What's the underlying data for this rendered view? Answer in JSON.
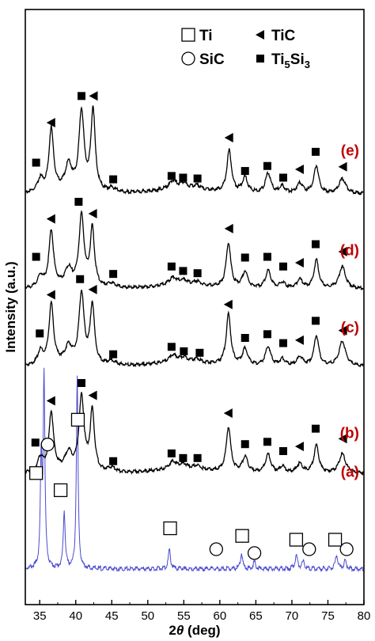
{
  "chart_data": {
    "type": "line",
    "title": "",
    "xlabel_main": "2",
    "xlabel_theta": "θ",
    "xlabel_unit": " (deg)",
    "ylabel": "Intensity (a.u.)",
    "xlim": [
      33,
      80
    ],
    "xticks": [
      35,
      40,
      45,
      50,
      55,
      60,
      65,
      70,
      75,
      80
    ],
    "grid": false,
    "legend_placement": "top-right",
    "legend": [
      {
        "name": "Ti",
        "marker": "square-open"
      },
      {
        "name": "TiC",
        "marker": "triangle-left"
      },
      {
        "name": "SiC",
        "marker": "circle-open"
      },
      {
        "name": "Ti",
        "sub1": "5",
        "mid": "Si",
        "sub2": "3",
        "marker": "square-filled"
      }
    ],
    "colors": {
      "label": "#c00000",
      "curve": "#000000",
      "curve_a": "#4a4ad0"
    },
    "series": [
      {
        "name": "(a)",
        "baseline": 0.06,
        "scale": 0.32,
        "peaks": [
          [
            35.2,
            0.55,
            0.14
          ],
          [
            35.6,
            1.0,
            0.14
          ],
          [
            38.4,
            0.3,
            0.16
          ],
          [
            40.2,
            1.0,
            0.14
          ],
          [
            53.0,
            0.1,
            0.18
          ],
          [
            63.0,
            0.08,
            0.18
          ],
          [
            64.8,
            0.04,
            0.18
          ],
          [
            70.6,
            0.07,
            0.2
          ],
          [
            71.6,
            0.04,
            0.2
          ],
          [
            76.2,
            0.07,
            0.2
          ],
          [
            77.4,
            0.04,
            0.2
          ]
        ],
        "markers": [
          {
            "x": 34.5,
            "h": 0.47,
            "m": "square-open"
          },
          {
            "x": 36.1,
            "h": 0.62,
            "m": "circle-open"
          },
          {
            "x": 37.9,
            "h": 0.38,
            "m": "square-open"
          },
          {
            "x": 40.3,
            "h": 0.75,
            "m": "square-open"
          },
          {
            "x": 53.1,
            "h": 0.18,
            "m": "square-open"
          },
          {
            "x": 59.5,
            "h": 0.07,
            "m": "circle-open"
          },
          {
            "x": 63.1,
            "h": 0.14,
            "m": "square-open"
          },
          {
            "x": 64.8,
            "h": 0.05,
            "m": "circle-open"
          },
          {
            "x": 70.6,
            "h": 0.12,
            "m": "square-open"
          },
          {
            "x": 72.4,
            "h": 0.07,
            "m": "circle-open"
          },
          {
            "x": 76.0,
            "h": 0.12,
            "m": "square-open"
          },
          {
            "x": 77.6,
            "h": 0.07,
            "m": "circle-open"
          }
        ]
      },
      {
        "name": "(b)",
        "baseline": 0.22,
        "scale": 0.13,
        "peaks": [
          [
            35.1,
            0.18,
            0.45
          ],
          [
            36.6,
            0.75,
            0.38
          ],
          [
            39.0,
            0.22,
            0.55
          ],
          [
            40.8,
            0.95,
            0.42
          ],
          [
            42.3,
            0.78,
            0.36
          ],
          [
            45.0,
            0.06,
            0.7
          ],
          [
            53.5,
            0.1,
            0.7
          ],
          [
            55.0,
            0.06,
            0.6
          ],
          [
            56.8,
            0.05,
            0.6
          ],
          [
            61.2,
            0.58,
            0.38
          ],
          [
            63.5,
            0.2,
            0.45
          ],
          [
            66.7,
            0.24,
            0.45
          ],
          [
            68.7,
            0.08,
            0.45
          ],
          [
            71.1,
            0.12,
            0.5
          ],
          [
            73.4,
            0.36,
            0.4
          ],
          [
            77.0,
            0.25,
            0.55
          ]
        ],
        "markers": [
          {
            "x": 34.4,
            "h": 0.32,
            "m": "square-filled"
          },
          {
            "x": 36.6,
            "h": 0.86,
            "m": "triangle-left"
          },
          {
            "x": 40.8,
            "h": 1.09,
            "m": "square-filled"
          },
          {
            "x": 42.4,
            "h": 0.93,
            "m": "triangle-left"
          },
          {
            "x": 45.2,
            "h": 0.08,
            "m": "square-filled"
          },
          {
            "x": 53.3,
            "h": 0.18,
            "m": "square-filled"
          },
          {
            "x": 54.9,
            "h": 0.12,
            "m": "square-filled"
          },
          {
            "x": 56.9,
            "h": 0.12,
            "m": "square-filled"
          },
          {
            "x": 61.2,
            "h": 0.7,
            "m": "triangle-left"
          },
          {
            "x": 63.5,
            "h": 0.3,
            "m": "square-filled"
          },
          {
            "x": 66.6,
            "h": 0.33,
            "m": "square-filled"
          },
          {
            "x": 68.8,
            "h": 0.21,
            "m": "square-filled"
          },
          {
            "x": 71.1,
            "h": 0.27,
            "m": "triangle-left"
          },
          {
            "x": 73.3,
            "h": 0.5,
            "m": "square-filled"
          },
          {
            "x": 77.1,
            "h": 0.37,
            "m": "triangle-left"
          }
        ]
      },
      {
        "name": "(c)",
        "baseline": 0.4,
        "scale": 0.125,
        "peaks": [
          [
            35.1,
            0.18,
            0.45
          ],
          [
            36.6,
            0.8,
            0.38
          ],
          [
            39.0,
            0.22,
            0.55
          ],
          [
            40.8,
            0.95,
            0.42
          ],
          [
            42.3,
            0.8,
            0.36
          ],
          [
            45.0,
            0.06,
            0.7
          ],
          [
            53.5,
            0.1,
            0.7
          ],
          [
            55.0,
            0.06,
            0.6
          ],
          [
            56.8,
            0.05,
            0.6
          ],
          [
            61.2,
            0.68,
            0.38
          ],
          [
            63.5,
            0.22,
            0.45
          ],
          [
            66.7,
            0.26,
            0.45
          ],
          [
            68.7,
            0.09,
            0.45
          ],
          [
            71.1,
            0.12,
            0.5
          ],
          [
            73.4,
            0.4,
            0.4
          ],
          [
            77.0,
            0.34,
            0.55
          ]
        ],
        "markers": [
          {
            "x": 35.0,
            "h": 0.36,
            "m": "square-filled"
          },
          {
            "x": 36.6,
            "h": 0.88,
            "m": "triangle-left"
          },
          {
            "x": 40.6,
            "h": 1.09,
            "m": "square-filled"
          },
          {
            "x": 42.4,
            "h": 0.95,
            "m": "triangle-left"
          },
          {
            "x": 45.2,
            "h": 0.08,
            "m": "square-filled"
          },
          {
            "x": 53.3,
            "h": 0.18,
            "m": "square-filled"
          },
          {
            "x": 55.0,
            "h": 0.12,
            "m": "square-filled"
          },
          {
            "x": 57.2,
            "h": 0.1,
            "m": "square-filled"
          },
          {
            "x": 61.2,
            "h": 0.75,
            "m": "triangle-left"
          },
          {
            "x": 63.5,
            "h": 0.3,
            "m": "square-filled"
          },
          {
            "x": 66.6,
            "h": 0.35,
            "m": "square-filled"
          },
          {
            "x": 68.8,
            "h": 0.23,
            "m": "square-filled"
          },
          {
            "x": 71.1,
            "h": 0.27,
            "m": "triangle-left"
          },
          {
            "x": 73.3,
            "h": 0.53,
            "m": "square-filled"
          },
          {
            "x": 77.1,
            "h": 0.4,
            "m": "triangle-left"
          }
        ]
      },
      {
        "name": "(d)",
        "baseline": 0.53,
        "scale": 0.125,
        "peaks": [
          [
            35.1,
            0.15,
            0.45
          ],
          [
            36.6,
            0.75,
            0.38
          ],
          [
            39.0,
            0.22,
            0.55
          ],
          [
            40.8,
            0.95,
            0.42
          ],
          [
            42.3,
            0.78,
            0.36
          ],
          [
            45.0,
            0.06,
            0.7
          ],
          [
            53.5,
            0.1,
            0.7
          ],
          [
            55.0,
            0.06,
            0.6
          ],
          [
            56.8,
            0.05,
            0.6
          ],
          [
            61.2,
            0.6,
            0.38
          ],
          [
            63.5,
            0.22,
            0.45
          ],
          [
            66.7,
            0.24,
            0.45
          ],
          [
            68.7,
            0.08,
            0.45
          ],
          [
            71.1,
            0.12,
            0.5
          ],
          [
            73.4,
            0.38,
            0.4
          ],
          [
            77.0,
            0.3,
            0.55
          ]
        ],
        "markers": [
          {
            "x": 34.5,
            "h": 0.35,
            "m": "square-filled"
          },
          {
            "x": 36.6,
            "h": 0.86,
            "m": "triangle-left"
          },
          {
            "x": 40.4,
            "h": 1.09,
            "m": "square-filled"
          },
          {
            "x": 42.4,
            "h": 0.93,
            "m": "triangle-left"
          },
          {
            "x": 45.2,
            "h": 0.12,
            "m": "square-filled"
          },
          {
            "x": 53.3,
            "h": 0.22,
            "m": "square-filled"
          },
          {
            "x": 54.9,
            "h": 0.16,
            "m": "square-filled"
          },
          {
            "x": 56.9,
            "h": 0.13,
            "m": "square-filled"
          },
          {
            "x": 61.3,
            "h": 0.73,
            "m": "triangle-left"
          },
          {
            "x": 63.5,
            "h": 0.34,
            "m": "square-filled"
          },
          {
            "x": 66.6,
            "h": 0.35,
            "m": "square-filled"
          },
          {
            "x": 68.8,
            "h": 0.22,
            "m": "square-filled"
          },
          {
            "x": 71.1,
            "h": 0.27,
            "m": "triangle-left"
          },
          {
            "x": 73.3,
            "h": 0.52,
            "m": "square-filled"
          },
          {
            "x": 77.1,
            "h": 0.42,
            "m": "triangle-left"
          }
        ]
      },
      {
        "name": "(e)",
        "baseline": 0.69,
        "scale": 0.14,
        "peaks": [
          [
            35.1,
            0.15,
            0.45
          ],
          [
            36.6,
            0.74,
            0.38
          ],
          [
            39.0,
            0.3,
            0.55
          ],
          [
            40.8,
            0.95,
            0.42
          ],
          [
            42.4,
            0.98,
            0.36
          ],
          [
            45.0,
            0.05,
            0.7
          ],
          [
            53.5,
            0.1,
            0.7
          ],
          [
            55.0,
            0.07,
            0.6
          ],
          [
            56.8,
            0.05,
            0.6
          ],
          [
            61.3,
            0.5,
            0.38
          ],
          [
            63.5,
            0.18,
            0.45
          ],
          [
            66.7,
            0.24,
            0.45
          ],
          [
            68.7,
            0.08,
            0.45
          ],
          [
            71.1,
            0.12,
            0.5
          ],
          [
            73.4,
            0.33,
            0.4
          ],
          [
            77.0,
            0.18,
            0.55
          ]
        ],
        "markers": [
          {
            "x": 34.5,
            "h": 0.3,
            "m": "square-filled"
          },
          {
            "x": 36.6,
            "h": 0.78,
            "m": "triangle-left"
          },
          {
            "x": 40.8,
            "h": 1.1,
            "m": "square-filled"
          },
          {
            "x": 42.5,
            "h": 1.1,
            "m": "triangle-left"
          },
          {
            "x": 45.2,
            "h": 0.1,
            "m": "square-filled"
          },
          {
            "x": 53.3,
            "h": 0.14,
            "m": "square-filled"
          },
          {
            "x": 54.9,
            "h": 0.12,
            "m": "square-filled"
          },
          {
            "x": 56.9,
            "h": 0.11,
            "m": "square-filled"
          },
          {
            "x": 61.3,
            "h": 0.6,
            "m": "triangle-left"
          },
          {
            "x": 63.5,
            "h": 0.2,
            "m": "square-filled"
          },
          {
            "x": 66.6,
            "h": 0.26,
            "m": "square-filled"
          },
          {
            "x": 68.8,
            "h": 0.12,
            "m": "square-filled"
          },
          {
            "x": 71.1,
            "h": 0.22,
            "m": "triangle-left"
          },
          {
            "x": 73.3,
            "h": 0.43,
            "m": "square-filled"
          },
          {
            "x": 77.1,
            "h": 0.25,
            "m": "triangle-left"
          }
        ]
      }
    ]
  }
}
